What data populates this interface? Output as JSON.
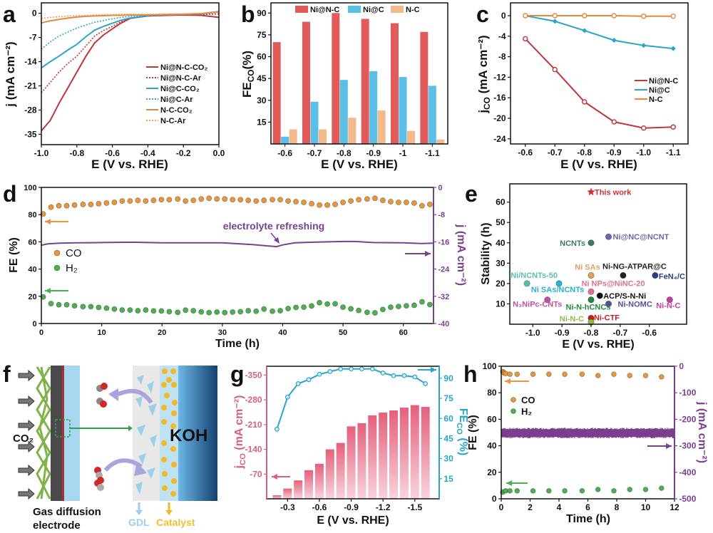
{
  "panel_labels": [
    "a",
    "b",
    "c",
    "d",
    "e",
    "f",
    "g",
    "h"
  ],
  "colors": {
    "ni_nc": "#c0343a",
    "ni_c": "#2aa5c8",
    "nc": "#e08a3a",
    "bar_red": "#e15b5b",
    "bar_blue": "#5bbfe8",
    "bar_orange": "#f3b98a",
    "co_points": "#e8963c",
    "h2_points": "#4caf50",
    "current": "#7b3f8f",
    "g_left": "#d6607f",
    "g_right": "#2aa5c8"
  },
  "diagram_f": {
    "co2_label": "CO₂",
    "koh_label": "KOH",
    "gde_label_line1": "Gas diffusion",
    "gde_label_line2": "electrode",
    "gdl_label": "GDL",
    "catalyst_label": "Catalyst"
  },
  "chart_data": [
    {
      "panel": "a",
      "type": "line",
      "xlabel": "E (V vs. RHE)",
      "ylabel": "j (mA cm⁻²)",
      "xlim": [
        -1.0,
        0.0
      ],
      "ylim": [
        -38,
        3
      ],
      "xticks": [
        "-1.0",
        "-0.8",
        "-0.6",
        "-0.4",
        "-0.2",
        "0.0"
      ],
      "yticks": [
        "0",
        "-7",
        "-14",
        "-21",
        "-28",
        "-35"
      ],
      "legend_position": "right",
      "x": [
        -1,
        -0.95,
        -0.9,
        -0.85,
        -0.8,
        -0.75,
        -0.7,
        -0.65,
        -0.6,
        -0.55,
        -0.5,
        -0.4,
        -0.3,
        -0.2,
        -0.1,
        0
      ],
      "series": [
        {
          "name": "Ni@N-C-CO₂",
          "color": "#c0343a",
          "style": "solid",
          "y": [
            -34,
            -31,
            -26,
            -21.5,
            -17,
            -12.5,
            -8.6,
            -6.3,
            -4.5,
            -2.8,
            -1.5,
            -0.8,
            -0.6,
            -0.5,
            -0.6,
            -1.2
          ]
        },
        {
          "name": "Ni@N-C-Ar",
          "color": "#c0343a",
          "style": "dotted",
          "y": [
            -23,
            -20,
            -17,
            -14.5,
            -12.4,
            -9.5,
            -6.6,
            -5,
            -3.8,
            -2.4,
            -1.4,
            -0.8,
            -0.6,
            -0.5,
            -0.4,
            -0.2
          ]
        },
        {
          "name": "Ni@C-CO₂",
          "color": "#2aa5c8",
          "style": "solid",
          "y": [
            -15.8,
            -14,
            -12.4,
            -10.6,
            -9,
            -6.8,
            -4.9,
            -3.8,
            -2.9,
            -2,
            -1.4,
            -0.7,
            -0.4,
            -0.3,
            -0.2,
            0.4
          ]
        },
        {
          "name": "Ni@C-Ar",
          "color": "#2aa5c8",
          "style": "dotted",
          "y": [
            -10.4,
            -8.3,
            -6.6,
            -5.4,
            -4.3,
            -3.4,
            -2.6,
            -2.1,
            -1.6,
            -1.2,
            -0.9,
            -0.5,
            -0.4,
            -0.3,
            -0.2,
            0.3
          ]
        },
        {
          "name": "N-C-CO₂",
          "color": "#e08a3a",
          "style": "solid",
          "y": [
            -2.8,
            -2.2,
            -1.8,
            -1.4,
            -1.1,
            -0.9,
            -0.8,
            -0.7,
            -0.6,
            -0.6,
            -0.5,
            -0.5,
            -0.4,
            -0.3,
            -0.1,
            0.5
          ]
        },
        {
          "name": "N-C-Ar",
          "color": "#e8a060",
          "style": "dotted",
          "y": [
            -1.5,
            -1.2,
            -1,
            -0.8,
            -0.7,
            -0.6,
            -0.5,
            -0.4,
            -0.4,
            -0.3,
            -0.3,
            -0.3,
            -0.2,
            -0.2,
            0,
            0.3
          ]
        }
      ]
    },
    {
      "panel": "b",
      "type": "bar",
      "xlabel": "E (V vs. RHE)",
      "ylabel": {
        "main": "FE",
        "sub": "CO",
        "suffix": "(%)"
      },
      "ylim": [
        0,
        97
      ],
      "categories": [
        "-0.6",
        "-0.7",
        "-0.8",
        "-0.9",
        "-1",
        "-1.1"
      ],
      "yticks": [
        "15",
        "30",
        "45",
        "60",
        "75",
        "90"
      ],
      "legend_position": "top",
      "series": [
        {
          "name": "Ni@N-C",
          "color": "#e15b5b",
          "values": [
            70,
            84,
            90,
            86,
            83,
            77
          ]
        },
        {
          "name": "Ni@C",
          "color": "#5bbfe8",
          "values": [
            5,
            29,
            44,
            50,
            46,
            40
          ]
        },
        {
          "name": "N-C",
          "color": "#f3b98a",
          "values": [
            10,
            10,
            18,
            23,
            9,
            3
          ]
        }
      ]
    },
    {
      "panel": "c",
      "type": "line",
      "xlabel": "E (V vs. RHE)",
      "ylabel": {
        "main": "j",
        "sub": "CO",
        "suffix": " (mA cm⁻²)"
      },
      "xlim": [
        -0.55,
        -1.15
      ],
      "ylim": [
        -25,
        2.5
      ],
      "xticks": [
        "-0.6",
        "-0.7",
        "-0.8",
        "-0.9",
        "-1.0",
        "-1.1"
      ],
      "yticks": [
        "0",
        "-4",
        "-8",
        "-12",
        "-16",
        "-20",
        "-24"
      ],
      "legend_position": "right",
      "x": [
        -0.6,
        -0.7,
        -0.8,
        -0.9,
        -1.0,
        -1.1
      ],
      "series": [
        {
          "name": "Ni@N-C",
          "color": "#c0343a",
          "marker": "open",
          "y": [
            -4.5,
            -10.5,
            -16.8,
            -20.7,
            -21.9,
            -21.7
          ]
        },
        {
          "name": "Ni@C",
          "color": "#2aa5c8",
          "marker": "diamond",
          "y": [
            0,
            -1.1,
            -2.9,
            -4.8,
            -5.8,
            -6.4
          ]
        },
        {
          "name": "N-C",
          "color": "#e08a3a",
          "marker": "open",
          "y": [
            0,
            0,
            0,
            0,
            -0.1,
            -0.1
          ]
        }
      ]
    },
    {
      "panel": "d",
      "type": "scatter",
      "xlabel": "Time (h)",
      "ylabel": "FE (%)",
      "y2label": "j (mA cm⁻²)",
      "xlim": [
        0,
        65
      ],
      "ylim": [
        0,
        100
      ],
      "y2lim": [
        0,
        -40
      ],
      "xticks": [
        "0",
        "10",
        "20",
        "30",
        "40",
        "50",
        "60"
      ],
      "yticks": [
        "0",
        "20",
        "40",
        "60",
        "80",
        "100"
      ],
      "y2ticks": [
        "0",
        "-8",
        "-16",
        "-24",
        "-32",
        "-40"
      ],
      "annotation": "electrolyte refreshing",
      "legend_position": "left",
      "time": [
        0.3,
        1.6,
        2.9,
        4.2,
        5.5,
        6.9,
        8.2,
        9.5,
        10.8,
        12.1,
        13.4,
        14.7,
        16.0,
        17.3,
        18.6,
        19.9,
        21.2,
        22.6,
        23.9,
        25.2,
        26.5,
        27.8,
        29.1,
        30.4,
        31.7,
        33.0,
        34.3,
        35.6,
        36.9,
        38.3,
        39.6,
        40.9,
        42.2,
        43.5,
        44.8,
        46.1,
        47.4,
        48.7,
        50.0,
        51.3,
        52.6,
        54.0,
        55.3,
        56.6,
        57.9,
        59.2,
        60.5,
        61.8,
        63.1,
        64.4
      ],
      "series": [
        {
          "name": "CO",
          "color": "#e8963c",
          "y": [
            80.5,
            85.5,
            86.5,
            86.5,
            87,
            87.5,
            87.5,
            88,
            88.5,
            89,
            90,
            90,
            90.5,
            90,
            90.5,
            91,
            91,
            91.5,
            90,
            90.5,
            91.5,
            92,
            91.5,
            91.5,
            91,
            91,
            90.5,
            90,
            90.5,
            91,
            91,
            90,
            89.5,
            89,
            88,
            87,
            87,
            87.5,
            89,
            90,
            91,
            91.5,
            92,
            90.5,
            89.5,
            89,
            89,
            88.5,
            86.5,
            87.5
          ]
        },
        {
          "name": "H₂",
          "color": "#4caf50",
          "y": [
            19.5,
            14.6,
            13.8,
            13.8,
            13,
            12.4,
            12.4,
            11.8,
            11.3,
            10.6,
            9.9,
            9.9,
            9.4,
            9.9,
            9.2,
            9.2,
            8.7,
            8.2,
            9.8,
            9.4,
            8.5,
            8,
            8.4,
            8,
            8.4,
            8.7,
            9.4,
            9,
            10.6,
            9,
            9.4,
            11,
            11.8,
            12,
            12.9,
            15.3,
            14.3,
            14.5,
            12,
            10.8,
            9.6,
            8.2,
            7.8,
            10.3,
            12,
            12.5,
            13,
            13.4,
            15.9,
            13.9
          ]
        }
      ],
      "current": {
        "time": [
          0,
          1,
          3,
          6,
          10,
          15,
          20,
          25,
          30,
          35,
          37,
          39,
          40,
          42,
          45,
          50,
          52,
          55,
          60,
          63,
          65
        ],
        "j": [
          -17.0,
          -16.6,
          -16.4,
          -16.3,
          -16.2,
          -16.1,
          -16.3,
          -16.3,
          -16.3,
          -16.8,
          -17.1,
          -17.4,
          -16.9,
          -16.3,
          -16.1,
          -15.9,
          -15.9,
          -16.2,
          -16.3,
          -16.5,
          -16.4
        ]
      }
    },
    {
      "panel": "e",
      "type": "scatter",
      "xlabel": "E (V vs. RHE)",
      "ylabel": "Stability (h)",
      "xlim": [
        -1.079,
        -0.472
      ],
      "ylim": [
        0,
        69
      ],
      "xticks": [
        "-1.0",
        "-0.9",
        "-0.8",
        "-0.7",
        "-0.6"
      ],
      "yticks": [
        "10",
        "20",
        "30",
        "40",
        "50",
        "60"
      ],
      "points": [
        {
          "label": "This work",
          "x": -0.8,
          "y": 65,
          "color": "#d03030",
          "marker": "star"
        },
        {
          "label": "NCNTs",
          "x": -0.8,
          "y": 40,
          "color": "#3a7a5a"
        },
        {
          "label": "Ni@NC@NCNT",
          "x": -0.74,
          "y": 43,
          "color": "#6a6aa8"
        },
        {
          "label": "Ni SAs",
          "x": -0.8,
          "y": 24,
          "color": "#e0a060"
        },
        {
          "label": "Ni-NG-ATPAR@C",
          "x": -0.69,
          "y": 24,
          "color": "#222222"
        },
        {
          "label": "FeN₄/C",
          "x": -0.58,
          "y": 24,
          "color": "#2a3f80"
        },
        {
          "label": "Ni/NCNTs-50",
          "x": -1.02,
          "y": 20,
          "color": "#5bbfa8"
        },
        {
          "label": "Ni SAs/NCNTs",
          "x": -0.91,
          "y": 20,
          "color": "#2ab0d0"
        },
        {
          "label": "Ni NPs@NiNC-20",
          "x": -0.8,
          "y": 16,
          "color": "#e07090"
        },
        {
          "label": "ACP/S-N-Ni",
          "x": -0.77,
          "y": 14,
          "color": "#111111"
        },
        {
          "label": "Ni-NOMC",
          "x": -0.74,
          "y": 10,
          "color": "#5a4a9a"
        },
        {
          "label": "N₃NiPc-CNTs",
          "x": -0.95,
          "y": 12,
          "color": "#c050a0"
        },
        {
          "label": "Ni-N-hCNCs",
          "x": -0.8,
          "y": 12,
          "color": "#1f8a40"
        },
        {
          "label": "Ni-N-C",
          "x": -0.53,
          "y": 12,
          "color": "#c040a0"
        },
        {
          "label": "Ni-CTF",
          "x": -0.8,
          "y": 3,
          "color": "#c02020"
        },
        {
          "label": "Ni-N-C",
          "x": -0.8,
          "y": 1,
          "color": "#8ac040"
        }
      ]
    },
    {
      "panel": "g",
      "type": "bar",
      "xlabel": "E (V vs. RHE)",
      "ylabel": {
        "main": "j",
        "sub": "CO",
        "suffix": " (mA cm⁻²)"
      },
      "y2label": {
        "main": "FE",
        "sub": "CO",
        "suffix": " (%)"
      },
      "xlim": [
        -0.103,
        -1.73
      ],
      "ylim": [
        0,
        -375
      ],
      "y2lim": [
        0,
        99
      ],
      "xticks": [
        "-0.3",
        "-0.6",
        "-0.9",
        "-1.2",
        "-1.5"
      ],
      "yticks": [
        "-70",
        "-140",
        "-210",
        "-280",
        "-350"
      ],
      "y2ticks": [
        "15",
        "30",
        "45",
        "60",
        "75",
        "90"
      ],
      "x": [
        -0.2,
        -0.3,
        -0.4,
        -0.5,
        -0.6,
        -0.7,
        -0.8,
        -0.9,
        -1.0,
        -1.1,
        -1.2,
        -1.3,
        -1.4,
        -1.5,
        -1.6
      ],
      "j_co": [
        -10,
        -29,
        -52,
        -81,
        -99,
        -140,
        -158,
        -205,
        -214,
        -236,
        -244,
        -250,
        -258,
        -265,
        -260
      ],
      "fe_co": [
        52,
        76,
        86,
        89,
        93,
        95,
        97,
        97,
        97,
        97,
        94,
        92,
        92,
        91,
        86
      ]
    },
    {
      "panel": "h",
      "type": "scatter",
      "xlabel": "Time (h)",
      "ylabel": "FE (%)",
      "y2label": "j (mA cm⁻²)",
      "xlim": [
        0,
        12
      ],
      "ylim": [
        0,
        100
      ],
      "y2lim": [
        0,
        -500
      ],
      "xticks": [
        "0",
        "2",
        "4",
        "6",
        "8",
        "10",
        "12"
      ],
      "yticks": [
        "0",
        "20",
        "40",
        "60",
        "80",
        "100"
      ],
      "y2ticks": [
        "0",
        "-100",
        "-200",
        "-300",
        "-400",
        "-500"
      ],
      "legend_position": "left",
      "series": [
        {
          "name": "CO",
          "color": "#e8963c",
          "time": [
            0.1,
            0.2,
            0.3,
            0.6,
            1.1,
            2.2,
            3.3,
            4.4,
            5.6,
            6.7,
            7.8,
            8.9,
            10,
            11.1
          ],
          "y": [
            96,
            95,
            94.5,
            94,
            94,
            94,
            94,
            94,
            94,
            93,
            94,
            93,
            93,
            92
          ]
        },
        {
          "name": "H₂",
          "color": "#4caf50",
          "time": [
            0.1,
            0.3,
            0.6,
            1.1,
            2.2,
            3.3,
            4.4,
            5.6,
            6.7,
            7.8,
            8.9,
            10,
            11.1
          ],
          "y": [
            5,
            6,
            6,
            6,
            6,
            6,
            6,
            6,
            7,
            6,
            7,
            7,
            8
          ]
        }
      ],
      "current": {
        "j_mean": -252,
        "j_band": [
          -272,
          -232
        ]
      }
    }
  ]
}
